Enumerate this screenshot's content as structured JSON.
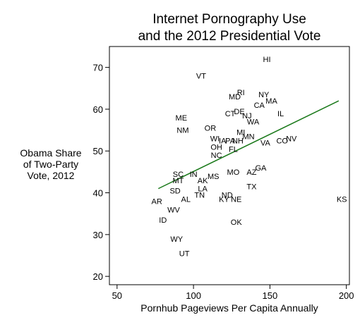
{
  "chart_data": {
    "type": "scatter",
    "title": "Internet Pornography Use",
    "subtitle": "and the 2012 Presidential Vote",
    "xlabel": "Pornhub Pageviews Per Capita Annually",
    "ylabel": [
      "Obama Share",
      "of Two-Party",
      "Vote, 2012"
    ],
    "xlim": [
      45,
      202
    ],
    "ylim": [
      18,
      75
    ],
    "xticks": [
      50,
      100,
      150,
      200
    ],
    "yticks": [
      20,
      30,
      40,
      50,
      60,
      70
    ],
    "grid": false,
    "trend_color": "#1b7a1b",
    "trendline": {
      "x": [
        77,
        195
      ],
      "y": [
        41,
        62
      ]
    },
    "points": [
      {
        "label": "HI",
        "x": 148,
        "y": 72
      },
      {
        "label": "VT",
        "x": 105,
        "y": 68
      },
      {
        "label": "RI",
        "x": 131,
        "y": 64
      },
      {
        "label": "NY",
        "x": 146,
        "y": 63.5
      },
      {
        "label": "MD",
        "x": 127,
        "y": 63
      },
      {
        "label": "MA",
        "x": 151,
        "y": 62
      },
      {
        "label": "CA",
        "x": 143,
        "y": 61
      },
      {
        "label": "DE",
        "x": 130,
        "y": 59.5
      },
      {
        "label": "CT",
        "x": 124,
        "y": 59
      },
      {
        "label": "NJ",
        "x": 135,
        "y": 58.5
      },
      {
        "label": "IL",
        "x": 157,
        "y": 59
      },
      {
        "label": "ME",
        "x": 92,
        "y": 58
      },
      {
        "label": "WA",
        "x": 139,
        "y": 57
      },
      {
        "label": "OR",
        "x": 111,
        "y": 55.5
      },
      {
        "label": "NM",
        "x": 93,
        "y": 55
      },
      {
        "label": "MI",
        "x": 131,
        "y": 54.5
      },
      {
        "label": "MN",
        "x": 136,
        "y": 53.5
      },
      {
        "label": "WI",
        "x": 114,
        "y": 53
      },
      {
        "label": "IA",
        "x": 119,
        "y": 52.5
      },
      {
        "label": "PA",
        "x": 124,
        "y": 52.5
      },
      {
        "label": "NH",
        "x": 129,
        "y": 52.5
      },
      {
        "label": "NV",
        "x": 164,
        "y": 53
      },
      {
        "label": "CO",
        "x": 158,
        "y": 52.5
      },
      {
        "label": "VA",
        "x": 147,
        "y": 52
      },
      {
        "label": "OH",
        "x": 115,
        "y": 51
      },
      {
        "label": "FL",
        "x": 126,
        "y": 50.5
      },
      {
        "label": "NC",
        "x": 115,
        "y": 49
      },
      {
        "label": "GA",
        "x": 144,
        "y": 46
      },
      {
        "label": "MO",
        "x": 126,
        "y": 45
      },
      {
        "label": "AZ",
        "x": 138,
        "y": 45
      },
      {
        "label": "SC",
        "x": 90,
        "y": 44.5
      },
      {
        "label": "IN",
        "x": 100,
        "y": 44.5
      },
      {
        "label": "MS",
        "x": 113,
        "y": 44
      },
      {
        "label": "AK",
        "x": 106,
        "y": 43
      },
      {
        "label": "MT",
        "x": 90,
        "y": 43
      },
      {
        "label": "TX",
        "x": 138,
        "y": 41.5
      },
      {
        "label": "LA",
        "x": 106,
        "y": 41
      },
      {
        "label": "SD",
        "x": 88,
        "y": 40.5
      },
      {
        "label": "ND",
        "x": 122,
        "y": 39.5
      },
      {
        "label": "TN",
        "x": 104,
        "y": 39.5
      },
      {
        "label": "AL",
        "x": 95,
        "y": 38.5
      },
      {
        "label": "KY",
        "x": 120,
        "y": 38.5
      },
      {
        "label": "NE",
        "x": 128,
        "y": 38.5
      },
      {
        "label": "KS",
        "x": 197,
        "y": 38.5
      },
      {
        "label": "AR",
        "x": 76,
        "y": 38
      },
      {
        "label": "WV",
        "x": 87,
        "y": 36
      },
      {
        "label": "ID",
        "x": 80,
        "y": 33.5
      },
      {
        "label": "OK",
        "x": 128,
        "y": 33
      },
      {
        "label": "WY",
        "x": 89,
        "y": 29
      },
      {
        "label": "UT",
        "x": 94,
        "y": 25.5
      }
    ]
  }
}
